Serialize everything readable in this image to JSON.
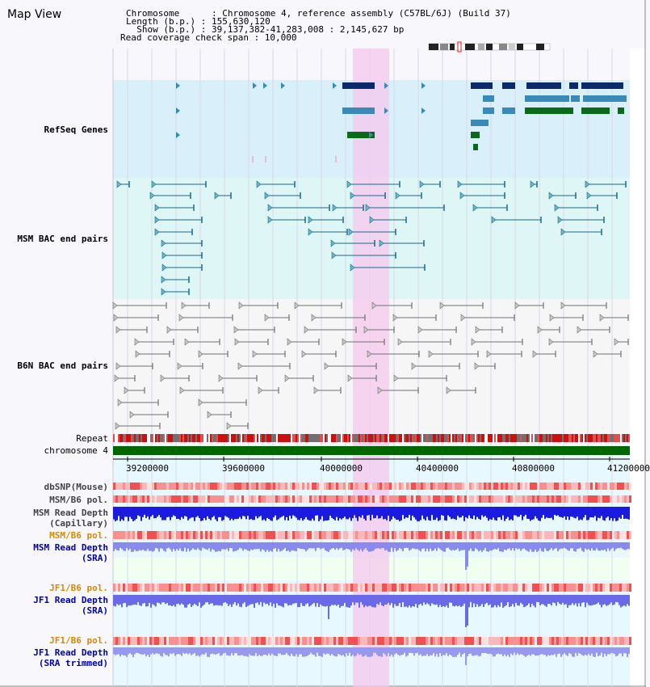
{
  "view_title": "Map View",
  "info": {
    "chromosome_line": "Chromosome      : Chromosome 4, reference assembly (C57BL/6J) (Build 37)",
    "length_line": "Length (b.p.) : 155,630,120",
    "show_line": "  Show (b.p.) : 39,137,382-41,283,008 : 2,145,627 bp",
    "coverage_line": "Read coverage check span : 10,000"
  },
  "tracks": {
    "refseq": "RefSeq Genes",
    "msm_bac": "MSM BAC end pairs",
    "b6n_bac": "B6N BAC end pairs",
    "repeat": "Repeat",
    "chromosome": "chromosome 4",
    "dbsnp": "dbSNP(Mouse)",
    "msm_b6_pol_1": "MSM/B6 pol.",
    "msm_depth_cap_1": "MSM Read Depth",
    "msm_depth_cap_2": "(Capillary)",
    "msm_b6_pol_2": "MSM/B6 pol.",
    "msm_depth_sra_1": "MSM Read Depth",
    "msm_depth_sra_2": "(SRA)",
    "jf1_b6_pol_1": "JF1/B6 pol.",
    "jf1_depth_sra_1": "JF1 Read Depth",
    "jf1_depth_sra_2": "(SRA)",
    "jf1_b6_pol_2": "JF1/B6 pol.",
    "jf1_depth_trim_1": "JF1 Read Depth",
    "jf1_depth_trim_2": "(SRA trimmed)"
  },
  "axis_ticks": [
    "39200000",
    "39600000",
    "40000000",
    "40400000",
    "40800000",
    "41200000"
  ],
  "colors": {
    "refseq_label": "#1a1ab0",
    "msm_bac_label": "#1a6a8a",
    "b6n_bac_label": "#707070",
    "pol_orange": "#d88a00",
    "depth_blue": "#0000b0",
    "highlight": "#f6c8ee"
  }
}
